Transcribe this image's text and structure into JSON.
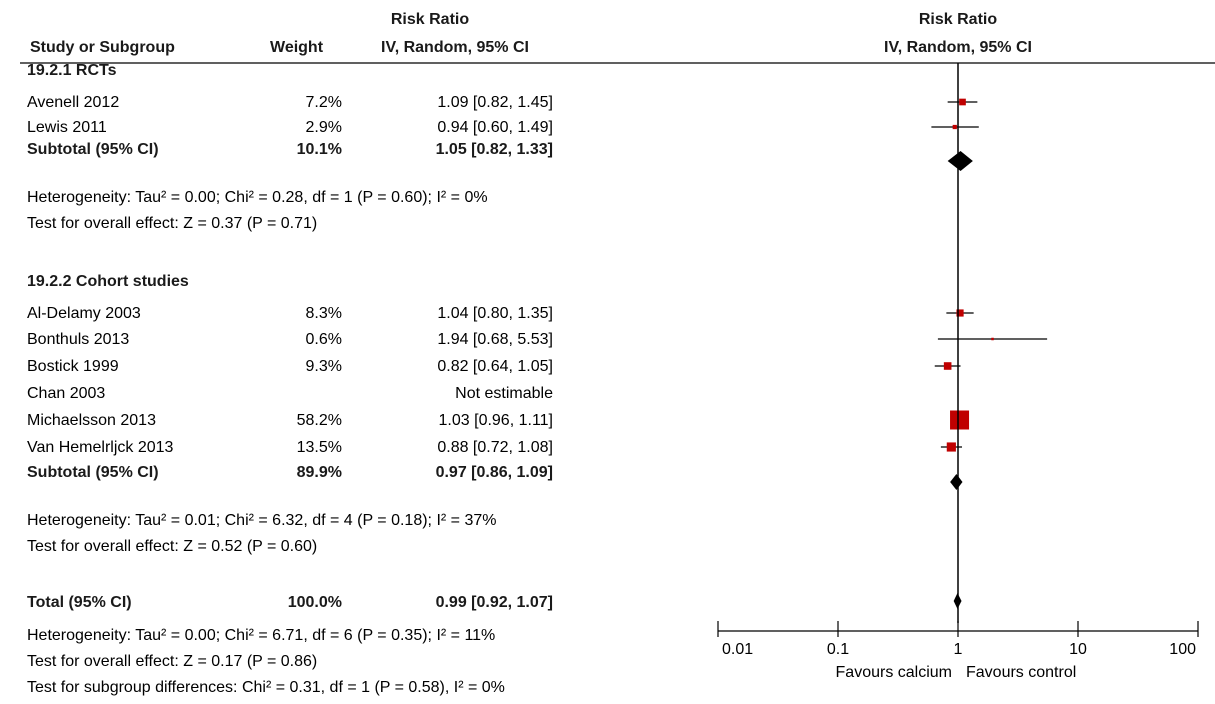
{
  "header": {
    "col_study": "Study or Subgroup",
    "col_weight": "Weight",
    "col_rr_top": "Risk Ratio",
    "col_rr_bottom": "IV, Random, 95% CI",
    "plot_top": "Risk Ratio",
    "plot_bottom": "IV, Random, 95% CI"
  },
  "axis": {
    "scale": "log",
    "null_value": 1,
    "ticks": [
      0.01,
      0.1,
      1,
      10,
      100
    ],
    "tick_labels": [
      "0.01",
      "0.1",
      "1",
      "10",
      "100"
    ],
    "favours_left": "Favours calcium",
    "favours_right": "Favours control"
  },
  "colors": {
    "square": "#c00000",
    "diamond": "#000000",
    "line": "#000000"
  },
  "chart_data": {
    "type": "forest",
    "groups": [
      {
        "title": "19.2.1 RCTs",
        "studies": [
          {
            "study": "Avenell 2012",
            "weight_text": "7.2%",
            "weight": 7.2,
            "ci_text": "1.09 [0.82, 1.45]",
            "rr": 1.09,
            "lo": 0.82,
            "hi": 1.45
          },
          {
            "study": "Lewis 2011",
            "weight_text": "2.9%",
            "weight": 2.9,
            "ci_text": "0.94 [0.60, 1.49]",
            "rr": 0.94,
            "lo": 0.6,
            "hi": 1.49
          }
        ],
        "subtotal": {
          "label": "Subtotal (95% CI)",
          "weight_text": "10.1%",
          "ci_text": "1.05 [0.82, 1.33]",
          "rr": 1.05,
          "lo": 0.82,
          "hi": 1.33
        },
        "heterogeneity": "Heterogeneity: Tau² = 0.00; Chi² = 0.28, df = 1 (P = 0.60); I² = 0%",
        "overall_effect": "Test for overall effect: Z = 0.37 (P = 0.71)"
      },
      {
        "title": "19.2.2 Cohort studies",
        "studies": [
          {
            "study": "Al-Delamy 2003",
            "weight_text": "8.3%",
            "weight": 8.3,
            "ci_text": "1.04 [0.80, 1.35]",
            "rr": 1.04,
            "lo": 0.8,
            "hi": 1.35
          },
          {
            "study": "Bonthuls 2013",
            "weight_text": "0.6%",
            "weight": 0.6,
            "ci_text": "1.94 [0.68, 5.53]",
            "rr": 1.94,
            "lo": 0.68,
            "hi": 5.53
          },
          {
            "study": "Bostick 1999",
            "weight_text": "9.3%",
            "weight": 9.3,
            "ci_text": "0.82 [0.64, 1.05]",
            "rr": 0.82,
            "lo": 0.64,
            "hi": 1.05
          },
          {
            "study": "Chan 2003",
            "weight_text": "",
            "weight": null,
            "ci_text": "Not estimable",
            "rr": null,
            "lo": null,
            "hi": null
          },
          {
            "study": "Michaelsson 2013",
            "weight_text": "58.2%",
            "weight": 58.2,
            "ci_text": "1.03 [0.96, 1.11]",
            "rr": 1.03,
            "lo": 0.96,
            "hi": 1.11
          },
          {
            "study": "Van Hemelrljck 2013",
            "weight_text": "13.5%",
            "weight": 13.5,
            "ci_text": "0.88 [0.72, 1.08]",
            "rr": 0.88,
            "lo": 0.72,
            "hi": 1.08
          }
        ],
        "subtotal": {
          "label": "Subtotal (95% CI)",
          "weight_text": "89.9%",
          "ci_text": "0.97 [0.86, 1.09]",
          "rr": 0.97,
          "lo": 0.86,
          "hi": 1.09
        },
        "heterogeneity": "Heterogeneity: Tau² = 0.01; Chi² = 6.32, df = 4 (P = 0.18); I² = 37%",
        "overall_effect": "Test for overall effect: Z = 0.52 (P = 0.60)"
      }
    ],
    "total": {
      "label": "Total (95% CI)",
      "weight_text": "100.0%",
      "ci_text": "0.99 [0.92, 1.07]",
      "rr": 0.99,
      "lo": 0.92,
      "hi": 1.07
    },
    "total_heterogeneity": "Heterogeneity: Tau² = 0.00; Chi² = 6.71, df = 6 (P = 0.35); I² = 11%",
    "total_overall_effect": "Test for overall effect: Z = 0.17 (P = 0.86)",
    "subgroup_differences": "Test for subgroup differences: Chi² = 0.31, df = 1 (P = 0.58), I² = 0%"
  }
}
